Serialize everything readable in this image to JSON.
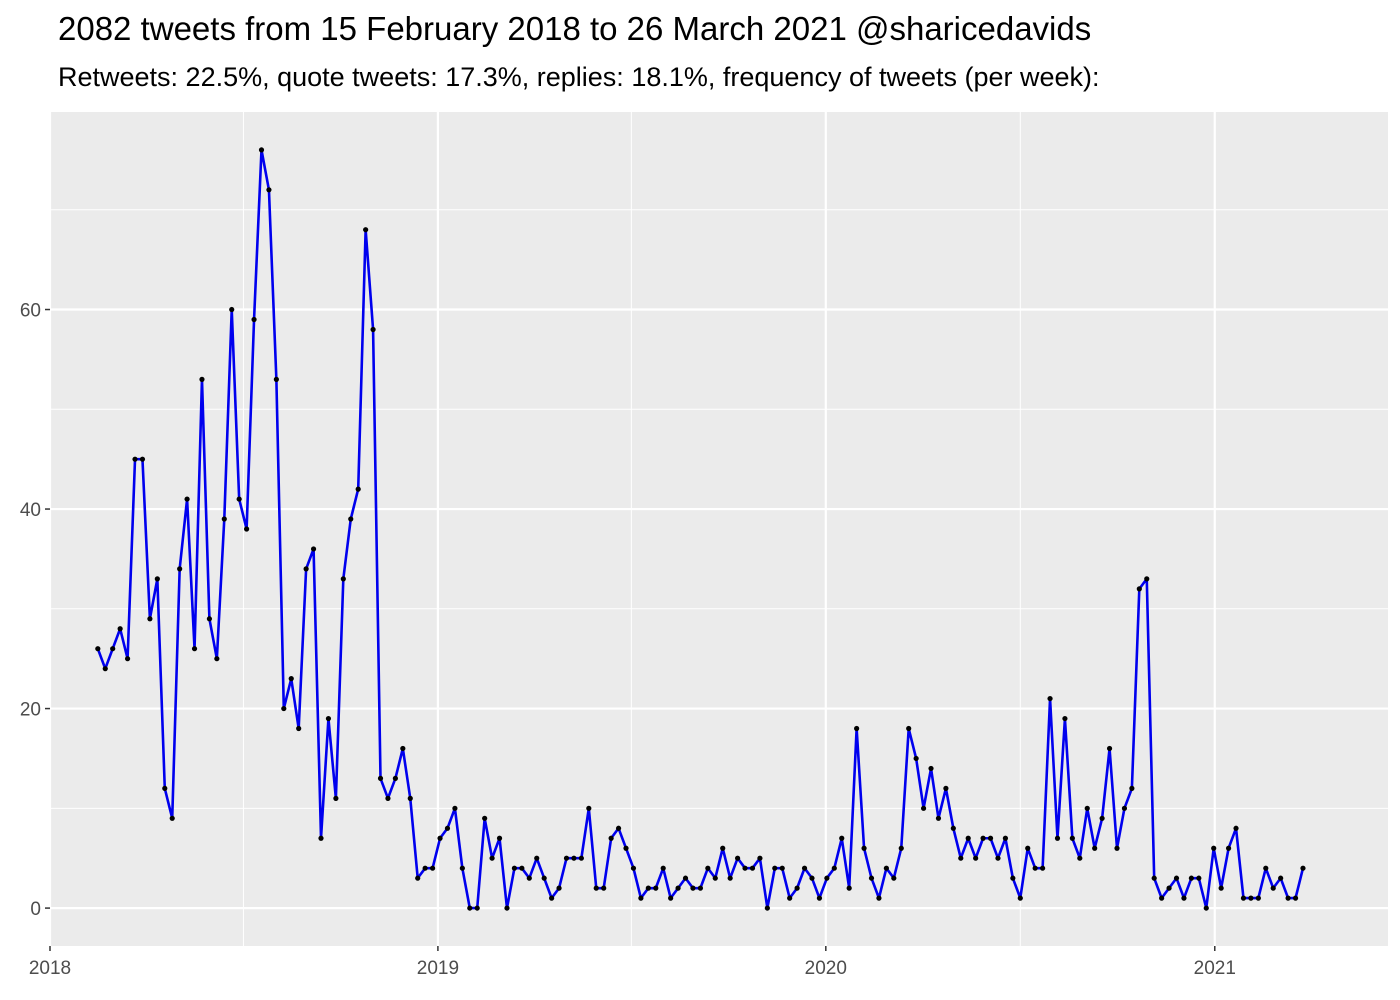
{
  "chart_data": {
    "type": "line",
    "title": "2082 tweets from 15 February 2018 to 26 March 2021 @sharicedavids",
    "subtitle": "Retweets: 22.5%, quote tweets: 17.3%, replies: 18.1%, frequency of tweets (per week):",
    "xlabel": "",
    "ylabel": "",
    "x_ticks": [
      "2018",
      "2019",
      "2020",
      "2021"
    ],
    "y_ticks": [
      0,
      20,
      40,
      60
    ],
    "xlim": [
      "2018-01-01",
      "2021-06-13"
    ],
    "ylim": [
      -3.8,
      79.8
    ],
    "grid": true,
    "line_color": "#0000ee",
    "point_color": "#000000",
    "panel_background": "#ebebeb",
    "series": [
      {
        "x": [
          "2018-02-15",
          "2018-02-22",
          "2018-03-01",
          "2018-03-08",
          "2018-03-15",
          "2018-03-22",
          "2018-03-29",
          "2018-04-05",
          "2018-04-12",
          "2018-04-19",
          "2018-04-26",
          "2018-05-03",
          "2018-05-10",
          "2018-05-17",
          "2018-05-24",
          "2018-05-31",
          "2018-06-07",
          "2018-06-14",
          "2018-06-21",
          "2018-06-28",
          "2018-07-05",
          "2018-07-12",
          "2018-07-19",
          "2018-07-26",
          "2018-08-02",
          "2018-08-09",
          "2018-08-16",
          "2018-08-23",
          "2018-08-30",
          "2018-09-06",
          "2018-09-13",
          "2018-09-20",
          "2018-09-27",
          "2018-10-04",
          "2018-10-11",
          "2018-10-18",
          "2018-10-25",
          "2018-11-01",
          "2018-11-08",
          "2018-11-15",
          "2018-11-22",
          "2018-11-29",
          "2018-12-06",
          "2018-12-13",
          "2018-12-20",
          "2018-12-27",
          "2019-01-03",
          "2019-01-10",
          "2019-01-17",
          "2019-01-24",
          "2019-01-31",
          "2019-02-07",
          "2019-02-14",
          "2019-02-21",
          "2019-02-28",
          "2019-03-07",
          "2019-03-14",
          "2019-03-21",
          "2019-03-28",
          "2019-04-04",
          "2019-04-11",
          "2019-04-18",
          "2019-04-25",
          "2019-05-02",
          "2019-05-09",
          "2019-05-16",
          "2019-05-23",
          "2019-05-30",
          "2019-06-06",
          "2019-06-13",
          "2019-06-20",
          "2019-06-27",
          "2019-07-04",
          "2019-07-11",
          "2019-07-18",
          "2019-07-25",
          "2019-08-01",
          "2019-08-08",
          "2019-08-15",
          "2019-08-22",
          "2019-08-29",
          "2019-09-05",
          "2019-09-12",
          "2019-09-19",
          "2019-09-26",
          "2019-10-03",
          "2019-10-10",
          "2019-10-17",
          "2019-10-24",
          "2019-10-31",
          "2019-11-07",
          "2019-11-14",
          "2019-11-21",
          "2019-11-28",
          "2019-12-05",
          "2019-12-12",
          "2019-12-19",
          "2019-12-26",
          "2020-01-02",
          "2020-01-09",
          "2020-01-16",
          "2020-01-23",
          "2020-01-30",
          "2020-02-06",
          "2020-02-13",
          "2020-02-20",
          "2020-02-27",
          "2020-03-05",
          "2020-03-12",
          "2020-03-19",
          "2020-03-26",
          "2020-04-02",
          "2020-04-09",
          "2020-04-16",
          "2020-04-23",
          "2020-04-30",
          "2020-05-07",
          "2020-05-14",
          "2020-05-21",
          "2020-05-28",
          "2020-06-04",
          "2020-06-11",
          "2020-06-18",
          "2020-06-25",
          "2020-07-02",
          "2020-07-09",
          "2020-07-16",
          "2020-07-23",
          "2020-07-30",
          "2020-08-06",
          "2020-08-13",
          "2020-08-20",
          "2020-08-27",
          "2020-09-03",
          "2020-09-10",
          "2020-09-17",
          "2020-09-24",
          "2020-10-01",
          "2020-10-08",
          "2020-10-15",
          "2020-10-22",
          "2020-10-29",
          "2020-11-05",
          "2020-11-12",
          "2020-11-19",
          "2020-11-26",
          "2020-12-03",
          "2020-12-10",
          "2020-12-17",
          "2020-12-24",
          "2020-12-31",
          "2021-01-07",
          "2021-01-14",
          "2021-01-21",
          "2021-01-28",
          "2021-02-04",
          "2021-02-11",
          "2021-02-18",
          "2021-02-25",
          "2021-03-04",
          "2021-03-11",
          "2021-03-18",
          "2021-03-25"
        ],
        "y": [
          26,
          24,
          26,
          28,
          25,
          45,
          45,
          29,
          33,
          12,
          9,
          34,
          41,
          26,
          53,
          29,
          25,
          39,
          60,
          41,
          38,
          59,
          76,
          72,
          53,
          20,
          23,
          18,
          34,
          36,
          7,
          19,
          11,
          33,
          39,
          42,
          68,
          58,
          13,
          11,
          13,
          16,
          11,
          3,
          4,
          4,
          7,
          8,
          10,
          4,
          0,
          0,
          9,
          5,
          7,
          0,
          4,
          4,
          3,
          5,
          3,
          1,
          2,
          5,
          5,
          5,
          10,
          2,
          2,
          7,
          8,
          6,
          4,
          1,
          2,
          2,
          4,
          1,
          2,
          3,
          2,
          2,
          4,
          3,
          6,
          3,
          5,
          4,
          4,
          5,
          0,
          4,
          4,
          1,
          2,
          4,
          3,
          1,
          3,
          4,
          7,
          2,
          18,
          6,
          3,
          1,
          4,
          3,
          6,
          18,
          15,
          10,
          14,
          9,
          12,
          8,
          5,
          7,
          5,
          7,
          7,
          5,
          7,
          3,
          1,
          6,
          4,
          4,
          21,
          7,
          19,
          7,
          5,
          10,
          6,
          9,
          16,
          6,
          10,
          12,
          32,
          33,
          3,
          1,
          2,
          3,
          1,
          3,
          3,
          0,
          6,
          2,
          6,
          8,
          1,
          1,
          1,
          4,
          2,
          3,
          1,
          1,
          4
        ]
      }
    ]
  }
}
